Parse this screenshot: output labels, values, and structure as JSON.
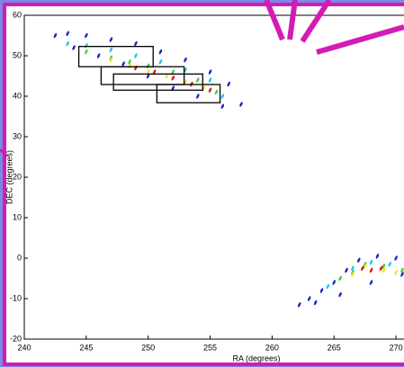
{
  "chart_data": {
    "type": "scatter",
    "xlabel": "RA (degrees)",
    "ylabel": "DEC (degrees)",
    "xlim": [
      240,
      272
    ],
    "ylim": [
      -20,
      60
    ],
    "xticks": [
      240,
      245,
      250,
      255,
      260,
      265,
      270
    ],
    "yticks": [
      -20,
      -10,
      0,
      10,
      20,
      30,
      40,
      50,
      60
    ],
    "series": [
      {
        "color": "#1a22c8",
        "x": [
          242.5,
          243.5,
          245,
          247,
          249,
          251,
          253,
          255,
          256.5,
          257.5,
          244,
          246,
          248,
          250,
          252,
          254,
          256,
          262.2,
          263,
          264,
          265,
          266,
          267,
          268.5,
          270,
          271.5,
          263.5,
          265.5,
          268,
          270.5
        ],
        "y": [
          55,
          55.5,
          55,
          54,
          53,
          51,
          49,
          46,
          43,
          38,
          52,
          50,
          48,
          45,
          42,
          40,
          37.5,
          -11.5,
          -10,
          -8,
          -6,
          -3,
          -0.5,
          0.5,
          0,
          -1,
          -11,
          -9,
          -6,
          -4
        ]
      },
      {
        "color": "#19c8e8",
        "x": [
          243.5,
          245,
          247,
          249,
          251,
          253,
          255,
          256,
          264.5,
          265.5,
          266.5,
          268,
          269.5,
          271
        ],
        "y": [
          53,
          52.5,
          51.5,
          50,
          48.5,
          46.5,
          44,
          40,
          -7,
          -5,
          -2.5,
          -1,
          -1.5,
          -2.5
        ]
      },
      {
        "color": "#3ad23a",
        "x": [
          245,
          247,
          248.5,
          250,
          252,
          254,
          255.5,
          265.5,
          266.5,
          267.5,
          269,
          270.5
        ],
        "y": [
          51,
          49.5,
          48.5,
          47.5,
          46,
          44,
          41,
          -5,
          -3.5,
          -1.5,
          -2,
          -3
        ]
      },
      {
        "color": "#f0e020",
        "x": [
          247,
          248.5,
          250,
          251.5,
          253,
          254.5,
          266.5,
          267.5,
          269,
          270
        ],
        "y": [
          49,
          47.5,
          46,
          45,
          43.5,
          42,
          -4,
          -2,
          -3,
          -3.5
        ]
      },
      {
        "color": "#d81818",
        "x": [
          249,
          250.5,
          252,
          253.5,
          255,
          267.3,
          268,
          268.8
        ],
        "y": [
          47,
          46,
          44.5,
          43,
          41.5,
          -2.5,
          -3,
          -2.5
        ]
      }
    ],
    "boxes": [
      {
        "ra_min": 244.4,
        "ra_max": 250.4,
        "dec_min": 47.3,
        "dec_max": 52.3
      },
      {
        "ra_min": 246.2,
        "ra_max": 252.9,
        "dec_min": 42.9,
        "dec_max": 47.3
      },
      {
        "ra_min": 247.2,
        "ra_max": 254.4,
        "dec_min": 41.5,
        "dec_max": 45.5
      },
      {
        "ra_min": 250.7,
        "ra_max": 255.8,
        "dec_min": 38.4,
        "dec_max": 42.9
      }
    ]
  }
}
